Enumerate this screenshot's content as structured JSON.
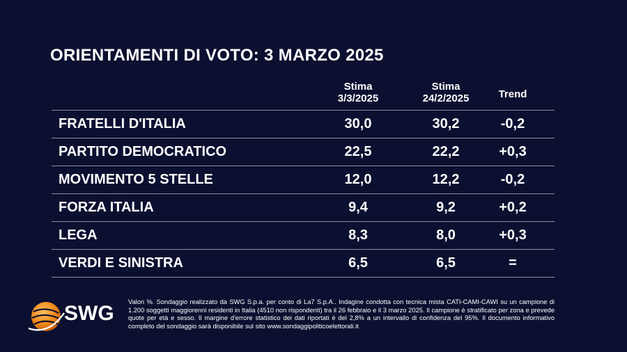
{
  "title": "ORIENTAMENTI DI VOTO: 3 MARZO 2025",
  "columns": {
    "stima_current_line1": "Stima",
    "stima_current_line2": "3/3/2025",
    "stima_prev_line1": "Stima",
    "stima_prev_line2": "24/2/2025",
    "trend": "Trend"
  },
  "chart_data": {
    "type": "table",
    "title": "ORIENTAMENTI DI VOTO: 3 MARZO 2025",
    "columns": [
      "Stima 3/3/2025",
      "Stima 24/2/2025",
      "Trend"
    ],
    "rows": [
      {
        "party": "FRATELLI D'ITALIA",
        "current": "30,0",
        "previous": "30,2",
        "trend": "-0,2"
      },
      {
        "party": "PARTITO DEMOCRATICO",
        "current": "22,5",
        "previous": "22,2",
        "trend": "+0,3"
      },
      {
        "party": "MOVIMENTO 5 STELLE",
        "current": "12,0",
        "previous": "12,2",
        "trend": "-0,2"
      },
      {
        "party": "FORZA ITALIA",
        "current": "9,4",
        "previous": "9,2",
        "trend": "+0,2"
      },
      {
        "party": "LEGA",
        "current": "8,3",
        "previous": "8,0",
        "trend": "+0,3"
      },
      {
        "party": "VERDI E SINISTRA",
        "current": "6,5",
        "previous": "6,5",
        "trend": "="
      }
    ]
  },
  "footer": {
    "logo_text": "SWG",
    "logo_icon": "orange-globe-icon",
    "note": "Valori %. Sondaggio realizzato da SWG S.p.a. per conto di La7 S.p.A.. Indagine condotta con tecnica mista CATI-CAMI-CAWI su un campione di 1.200 soggetti maggiorenni residenti in Italia (4510 non rispondenti) tra il 26 febbraio e il 3 marzo 2025. Il campione è stratificato per zona e prevede quote per età e sesso. Il margine d'errore statistico dei dati riportati è del 2,8% a un intervallo di confidenza del 95%. Il documento informativo completo del sondaggio sarà disponibile sul sito www.sondaggipoliticoelettorali.it"
  },
  "colors": {
    "background": "#0c1030",
    "text": "#ffffff",
    "rule": "#8a8fa8",
    "logo_orange": "#f28c1c"
  }
}
